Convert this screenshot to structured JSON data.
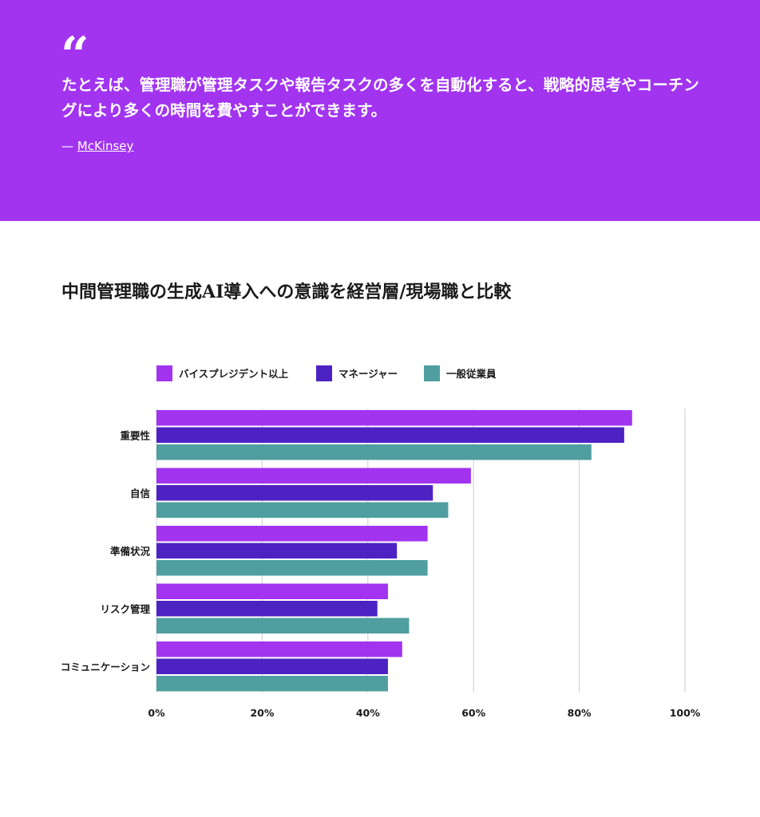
{
  "quote": {
    "mark": "“",
    "text": "たとえば、管理職が管理タスクや報告タスクの多くを自動化すると、戦略的思考やコーチングにより多くの時間を費やすことができます。",
    "source_prefix": "— ",
    "source_link": "McKinsey"
  },
  "colors": {
    "banner": "#a234f0",
    "vp": "#a234f0",
    "manager": "#4d22c2",
    "general": "#4f9ea0"
  },
  "chart_data": {
    "type": "bar",
    "orientation": "horizontal",
    "title": "中間管理職の生成AI導入への意識を経営層/現場職と比較",
    "categories": [
      "重要性",
      "自信",
      "準備状況",
      "リスク管理",
      "コミュニケーション"
    ],
    "series": [
      {
        "name": "バイスプレジデント以上",
        "color": "#a234f0",
        "values": [
          90,
          59.5,
          51.3,
          43.8,
          46.5
        ]
      },
      {
        "name": "マネージャー",
        "color": "#4d22c2",
        "values": [
          88.5,
          52.3,
          45.5,
          41.8,
          43.8
        ]
      },
      {
        "name": "一般従業員",
        "color": "#4f9ea0",
        "values": [
          82.3,
          55.2,
          51.3,
          47.8,
          43.8
        ]
      }
    ],
    "xlim": [
      0,
      100
    ],
    "x_ticks": [
      "0%",
      "20%",
      "40%",
      "60%",
      "80%",
      "100%"
    ],
    "x_tick_values": [
      0,
      20,
      40,
      60,
      80,
      100
    ],
    "legend_position": "top-left",
    "grid": true
  }
}
